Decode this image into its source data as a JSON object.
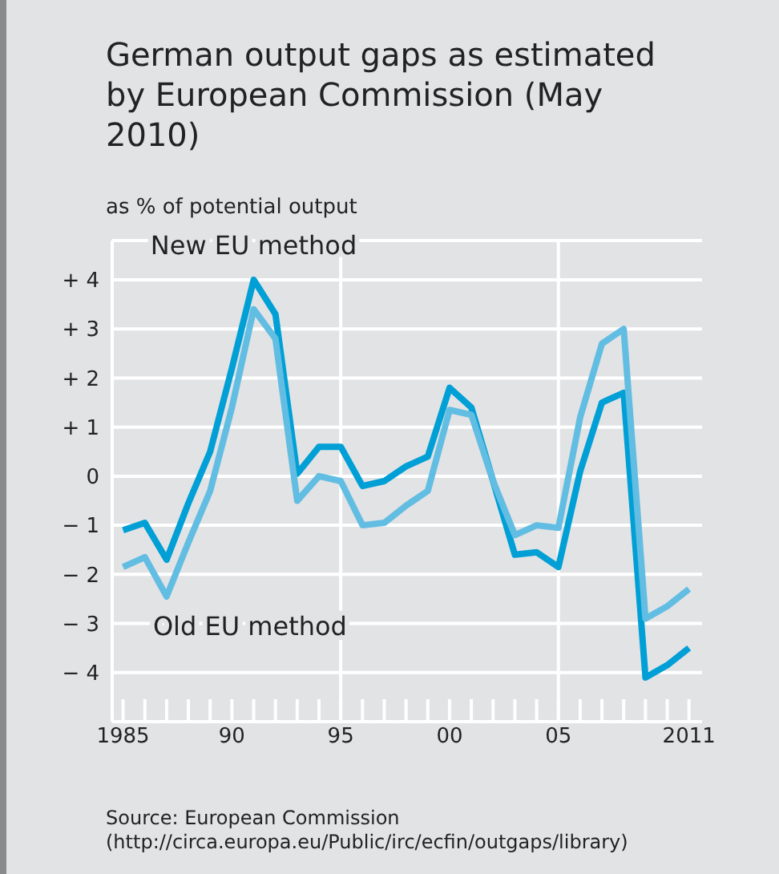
{
  "chart_data": {
    "type": "line",
    "title": "German output gaps as estimated by European Commission (May 2010)",
    "subtitle": "as % of potential output",
    "x": [
      1985,
      1986,
      1987,
      1988,
      1989,
      1990,
      1991,
      1992,
      1993,
      1994,
      1995,
      1996,
      1997,
      1998,
      1999,
      2000,
      2001,
      2002,
      2003,
      2004,
      2005,
      2006,
      2007,
      2008,
      2009,
      2010,
      2011
    ],
    "series": [
      {
        "name": "New EU method",
        "color": "#009fd6",
        "values": [
          -1.1,
          -0.95,
          -1.7,
          -0.55,
          0.5,
          2.2,
          4.0,
          3.3,
          0.05,
          0.6,
          0.6,
          -0.2,
          -0.1,
          0.2,
          0.4,
          1.8,
          1.4,
          -0.1,
          -1.6,
          -1.55,
          -1.85,
          0.1,
          1.5,
          1.7,
          -4.1,
          -3.85,
          -3.5
        ]
      },
      {
        "name": "Old EU method",
        "color": "#62bde2",
        "values": [
          -1.85,
          -1.65,
          -2.45,
          -1.35,
          -0.3,
          1.4,
          3.4,
          2.8,
          -0.5,
          0.0,
          -0.1,
          -1.0,
          -0.95,
          -0.6,
          -0.3,
          1.35,
          1.25,
          -0.1,
          -1.2,
          -1.0,
          -1.05,
          1.2,
          2.7,
          3.0,
          -2.9,
          -2.65,
          -2.3
        ]
      }
    ],
    "xlim": [
      1984.5,
      2011.6
    ],
    "xticks": [
      {
        "value": 1985,
        "label": "1985"
      },
      {
        "value": 1986,
        "label": null
      },
      {
        "value": 1987,
        "label": null
      },
      {
        "value": 1988,
        "label": null
      },
      {
        "value": 1989,
        "label": null
      },
      {
        "value": 1990,
        "label": "90"
      },
      {
        "value": 1991,
        "label": null
      },
      {
        "value": 1992,
        "label": null
      },
      {
        "value": 1993,
        "label": null
      },
      {
        "value": 1994,
        "label": null
      },
      {
        "value": 1995,
        "label": "95"
      },
      {
        "value": 1996,
        "label": null
      },
      {
        "value": 1997,
        "label": null
      },
      {
        "value": 1998,
        "label": null
      },
      {
        "value": 1999,
        "label": null
      },
      {
        "value": 2000,
        "label": "00"
      },
      {
        "value": 2001,
        "label": null
      },
      {
        "value": 2002,
        "label": null
      },
      {
        "value": 2003,
        "label": null
      },
      {
        "value": 2004,
        "label": null
      },
      {
        "value": 2005,
        "label": "05"
      },
      {
        "value": 2006,
        "label": null
      },
      {
        "value": 2007,
        "label": null
      },
      {
        "value": 2008,
        "label": null
      },
      {
        "value": 2009,
        "label": null
      },
      {
        "value": 2010,
        "label": null
      },
      {
        "value": 2011,
        "label": "2011"
      }
    ],
    "ylim": [
      -5,
      4.8
    ],
    "yticks": [
      {
        "value": -4,
        "label": "− 4"
      },
      {
        "value": -3,
        "label": "− 3"
      },
      {
        "value": -2,
        "label": "− 2"
      },
      {
        "value": -1,
        "label": "− 1"
      },
      {
        "value": 0,
        "label": "0"
      },
      {
        "value": 1,
        "label": "+ 1"
      },
      {
        "value": 2,
        "label": "+ 2"
      },
      {
        "value": 3,
        "label": "+ 3"
      },
      {
        "value": 4,
        "label": "+ 4"
      }
    ],
    "grid": "y",
    "ref_lines": [
      {
        "axis": "x",
        "value": 1995,
        "color": "#ffffff"
      },
      {
        "axis": "x",
        "value": 2005,
        "color": "#ffffff"
      }
    ],
    "annotations": [
      "Source: European Commission",
      "(http://circa.europa.eu/Public/irc/ecfin/outgaps/library)"
    ]
  }
}
